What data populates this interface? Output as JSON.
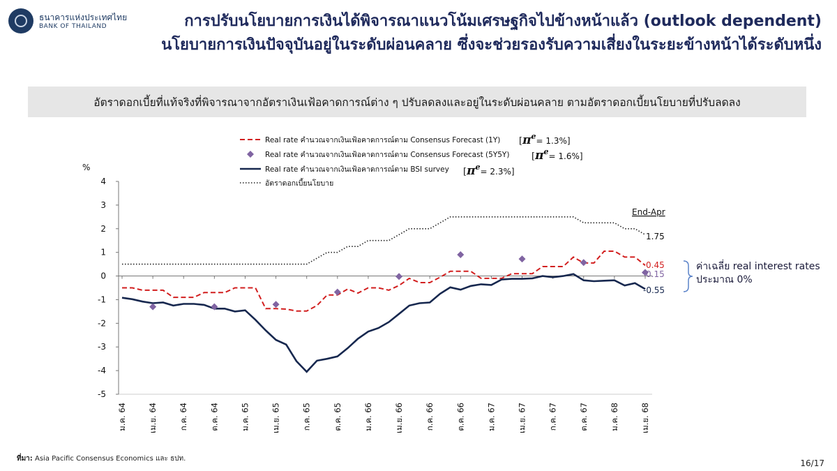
{
  "header": {
    "logo_text_th": "ธนาคารแห่งประเทศไทย",
    "logo_text_en": "BANK OF THAILAND",
    "title_line1": "การปรับนโยบายการเงินได้พิจารณาแนวโน้มเศรษฐกิจไปข้างหน้าแล้ว (outlook dependent)",
    "title_line2": "นโยบายการเงินปัจจุบันอยู่ในระดับผ่อนคลาย ซึ่งจะช่วยรองรับความเสี่ยงในระยะข้างหน้าได้ระดับหนึ่ง"
  },
  "banner_text": "อัตราดอกเบี้ยที่แท้จริงที่พิจารณาจากอัตราเงินเฟ้อคาดการณ์ต่าง ๆ ปรับลดลงและอยู่ในระดับผ่อนคลาย ตามอัตราดอกเบี้ยนโยบายที่ปรับลดลง",
  "chart_data": {
    "type": "line",
    "ylabel": "%",
    "ylim": [
      -5,
      4
    ],
    "yticks": [
      4,
      3,
      2,
      1,
      0,
      -1,
      -2,
      -3,
      -4,
      -5
    ],
    "xticks": [
      "ม.ค. 64",
      "เม.ย. 64",
      "ก.ค. 64",
      "ต.ค. 64",
      "ม.ค. 65",
      "เม.ย. 65",
      "ก.ค. 65",
      "ต.ค. 65",
      "ม.ค. 66",
      "เม.ย. 66",
      "ก.ค. 66",
      "ต.ค. 66",
      "ม.ค. 67",
      "เม.ย. 67",
      "ก.ค. 67",
      "ต.ค. 67",
      "ม.ค. 68",
      "เม.ย. 68"
    ],
    "x_months": [
      "ม.ค. 64",
      "ก.พ. 64",
      "มี.ค. 64",
      "เม.ย. 64",
      "พ.ค. 64",
      "มิ.ย. 64",
      "ก.ค. 64",
      "ส.ค. 64",
      "ก.ย. 64",
      "ต.ค. 64",
      "พ.ย. 64",
      "ธ.ค. 64",
      "ม.ค. 65",
      "ก.พ. 65",
      "มี.ค. 65",
      "เม.ย. 65",
      "พ.ค. 65",
      "มิ.ย. 65",
      "ก.ค. 65",
      "ส.ค. 65",
      "ก.ย. 65",
      "ต.ค. 65",
      "พ.ย. 65",
      "ธ.ค. 65",
      "ม.ค. 66",
      "ก.พ. 66",
      "มี.ค. 66",
      "เม.ย. 66",
      "พ.ค. 66",
      "มิ.ย. 66",
      "ก.ค. 66",
      "ส.ค. 66",
      "ก.ย. 66",
      "ต.ค. 66",
      "พ.ย. 66",
      "ธ.ค. 66",
      "ม.ค. 67",
      "ก.พ. 67",
      "มี.ค. 67",
      "เม.ย. 67",
      "พ.ค. 67",
      "มิ.ย. 67",
      "ก.ค. 67",
      "ส.ค. 67",
      "ก.ย. 67",
      "ต.ค. 67",
      "พ.ย. 67",
      "ธ.ค. 67",
      "ม.ค. 68",
      "ก.พ. 68",
      "มี.ค. 68",
      "เม.ย. 68"
    ],
    "series": [
      {
        "name": "Real rate คำนวณจากเงินเฟ้อคาดการณ์ตาม Consensus Forecast (1Y)",
        "legend_note": "= 1.3%]",
        "style": "dashed",
        "color": "#d21f1f",
        "values": [
          -0.5,
          -0.5,
          -0.6,
          -0.6,
          -0.6,
          -0.9,
          -0.9,
          -0.9,
          -0.7,
          -0.7,
          -0.7,
          -0.5,
          -0.5,
          -0.5,
          -1.38,
          -1.38,
          -1.4,
          -1.48,
          -1.48,
          -1.25,
          -0.8,
          -0.8,
          -0.55,
          -0.72,
          -0.5,
          -0.5,
          -0.6,
          -0.4,
          -0.1,
          -0.28,
          -0.28,
          -0.05,
          0.2,
          0.2,
          0.2,
          -0.1,
          -0.1,
          -0.1,
          0.1,
          0.1,
          0.1,
          0.4,
          0.4,
          0.4,
          0.8,
          0.55,
          0.55,
          1.05,
          1.05,
          0.8,
          0.8,
          0.45
        ]
      },
      {
        "name": "Real rate คำนวณจากเงินเฟ้อคาดการณ์ตาม Consensus Forecast (5Y5Y)",
        "legend_note": "= 1.6%]",
        "style": "markers",
        "color": "#8064a2",
        "points": [
          {
            "x": 3,
            "y": -1.3
          },
          {
            "x": 9,
            "y": -1.3
          },
          {
            "x": 15,
            "y": -1.2
          },
          {
            "x": 21,
            "y": -0.68
          },
          {
            "x": 27,
            "y": -0.02
          },
          {
            "x": 33,
            "y": 0.9
          },
          {
            "x": 39,
            "y": 0.72
          },
          {
            "x": 45,
            "y": 0.57
          },
          {
            "x": 51,
            "y": 0.15
          }
        ]
      },
      {
        "name": "Real rate คำนวณจากเงินเฟ้อคาดการณ์ตาม BSI survey",
        "legend_note": "= 2.3%]",
        "style": "solid",
        "color": "#17284f",
        "values": [
          -0.92,
          -0.98,
          -1.08,
          -1.15,
          -1.12,
          -1.25,
          -1.18,
          -1.18,
          -1.22,
          -1.38,
          -1.38,
          -1.5,
          -1.45,
          -1.85,
          -2.3,
          -2.7,
          -2.9,
          -3.6,
          -4.05,
          -3.58,
          -3.5,
          -3.4,
          -3.05,
          -2.65,
          -2.35,
          -2.2,
          -1.95,
          -1.6,
          -1.25,
          -1.15,
          -1.12,
          -0.75,
          -0.48,
          -0.58,
          -0.42,
          -0.35,
          -0.38,
          -0.15,
          -0.12,
          -0.12,
          -0.1,
          0.0,
          -0.05,
          0.0,
          0.08,
          -0.18,
          -0.22,
          -0.2,
          -0.18,
          -0.4,
          -0.3,
          -0.55
        ]
      },
      {
        "name": "อัตราดอกเบี้ยนโยบาย",
        "style": "dotted",
        "color": "#222222",
        "values": [
          0.5,
          0.5,
          0.5,
          0.5,
          0.5,
          0.5,
          0.5,
          0.5,
          0.5,
          0.5,
          0.5,
          0.5,
          0.5,
          0.5,
          0.5,
          0.5,
          0.5,
          0.5,
          0.5,
          0.75,
          1.0,
          1.0,
          1.25,
          1.25,
          1.5,
          1.5,
          1.5,
          1.75,
          2.0,
          2.0,
          2.0,
          2.25,
          2.5,
          2.5,
          2.5,
          2.5,
          2.5,
          2.5,
          2.5,
          2.5,
          2.5,
          2.5,
          2.5,
          2.5,
          2.5,
          2.25,
          2.25,
          2.25,
          2.25,
          2.0,
          2.0,
          1.75
        ]
      }
    ],
    "pi_symbol": "π",
    "pi_sup": "e",
    "annotation_end": "End-Apr",
    "end_labels": [
      "1.75",
      "0.45",
      "0.15",
      "-0.55"
    ],
    "brace_note_line1": "ค่าเฉลี่ย real interest rates",
    "brace_note_line2": "ประมาณ 0%"
  },
  "footer": {
    "source_label": "ที่มา:",
    "source_text": " Asia Pacific Consensus Economics และ ธปท.",
    "page": "16/17"
  }
}
